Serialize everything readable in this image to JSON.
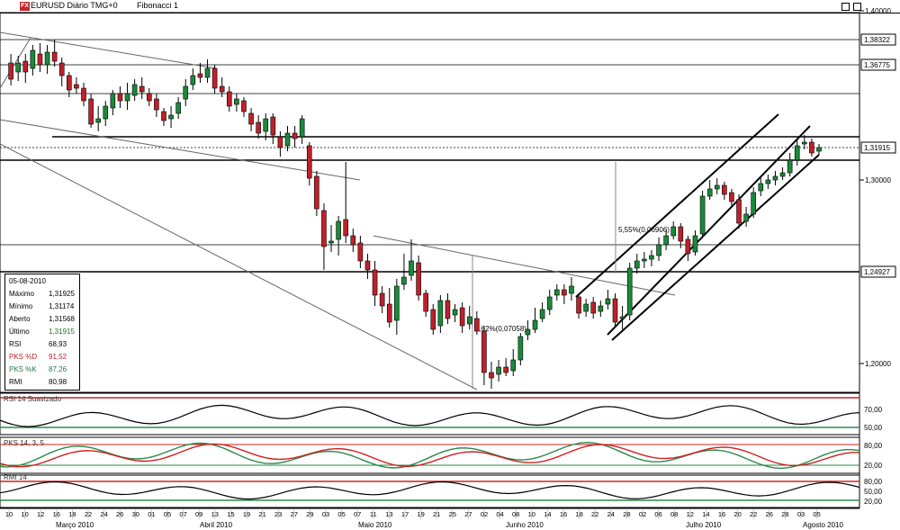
{
  "window": {
    "symbol_title": "EURUSD Diário TMG+0",
    "tool_label": "Fibonacci 1",
    "logo_text": "FX"
  },
  "info_box": {
    "rows": [
      {
        "label": "05-08-2010",
        "value": ""
      },
      {
        "label": "Máximo",
        "value": "1,31925"
      },
      {
        "label": "Mínimo",
        "value": "1,31174"
      },
      {
        "label": "Aberto",
        "value": "1,31568"
      },
      {
        "label": "Último",
        "value": "1,31915"
      },
      {
        "label": "RSI",
        "value": "68,93"
      },
      {
        "label": "PKS %D",
        "value": "91,52"
      },
      {
        "label": "PKS %K",
        "value": "87,26"
      },
      {
        "label": "RMI",
        "value": "80,98"
      }
    ],
    "colors": {
      "last": "#1a7a1a",
      "pksd": "#c0202a",
      "pksk": "#2a7a4a"
    }
  },
  "price_axis": {
    "ticks": [
      "1,40000",
      "1,30000",
      "1,20000"
    ],
    "labels": [
      "1,38322",
      "1,36775",
      "1,31915",
      "1,24927"
    ]
  },
  "annotations": {
    "upper_move": "5,55%(0,06906)",
    "lower_move": "5,62%(0,07058)"
  },
  "indicators": {
    "rsi": {
      "label": "RSI 14 Suavizado",
      "levels": [
        "70,00",
        "50,00"
      ]
    },
    "pks": {
      "label": "PKS 14, 3, 5",
      "levels": [
        "80,00",
        "20,00"
      ]
    },
    "rmi": {
      "label": "RMI 14",
      "levels": [
        "80,00",
        "50,00",
        "20,00"
      ]
    }
  },
  "dates": [
    "10",
    "10",
    "12",
    "16",
    "18",
    "22",
    "24",
    "26",
    "30",
    "01",
    "05",
    "07",
    "09",
    "13",
    "15",
    "19",
    "21",
    "23",
    "27",
    "29",
    "03",
    "05",
    "07",
    "11",
    "13",
    "17",
    "19",
    "21",
    "25",
    "27",
    "02",
    "04",
    "08",
    "10",
    "14",
    "16",
    "18",
    "22",
    "24",
    "28",
    "02",
    "06",
    "08",
    "12",
    "14",
    "16",
    "20",
    "22",
    "26",
    "28",
    "03",
    "05"
  ],
  "months": [
    "Março 2010",
    "Abril 2010",
    "Maio 2010",
    "Junho 2010",
    "Julho 2010",
    "Agosto 2010"
  ],
  "colors": {
    "up": "#1a8a3a",
    "down": "#c0202a",
    "line": "#000000",
    "grid": "#000000",
    "red_line": "#d02020",
    "green_line": "#2a8a4a"
  }
}
